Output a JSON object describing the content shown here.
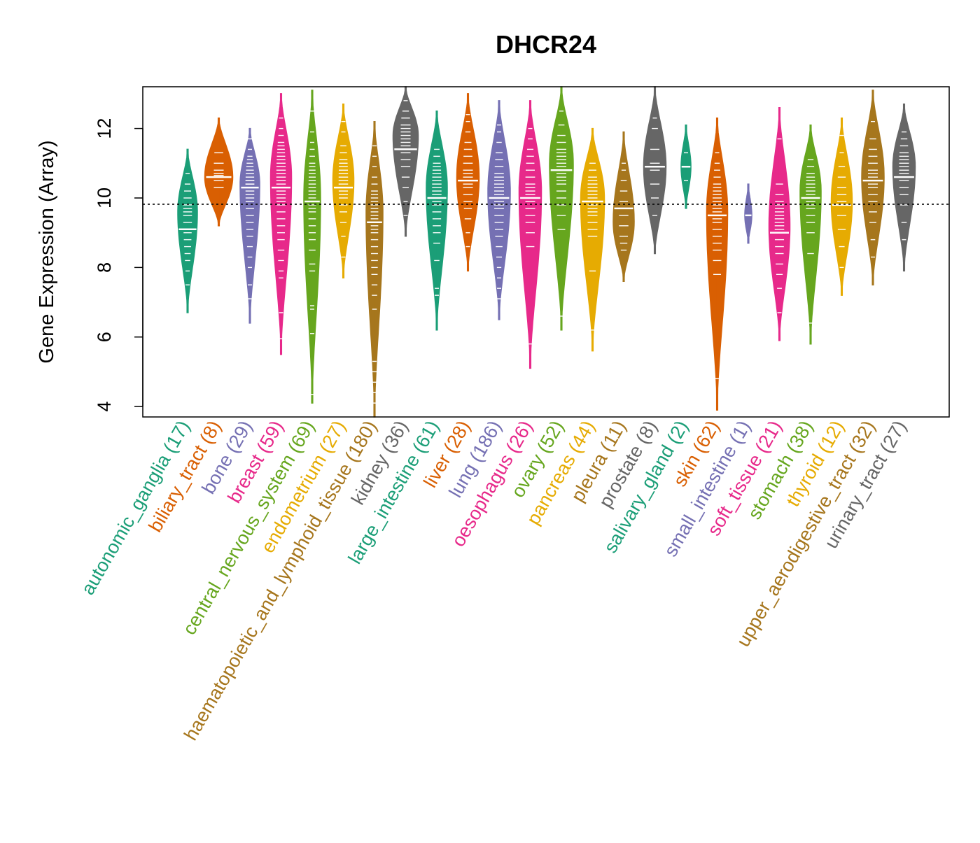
{
  "chart_data": {
    "type": "violin",
    "title": "DHCR24",
    "xlabel": "",
    "ylabel": "Gene Expression (Array)",
    "ylim": [
      3.7,
      13.2
    ],
    "yticks": [
      4,
      6,
      8,
      10,
      12
    ],
    "reference_line": 9.82,
    "grid": false,
    "legend": "none",
    "categories": [
      {
        "name": "autonomic_ganglia",
        "n": 17,
        "label": "autonomic_ganglia (17)",
        "color": "#1B9E77",
        "min": 6.7,
        "max": 11.4,
        "median": 9.1,
        "mode": 9.6,
        "width": 0.7,
        "points": [
          7.5,
          7.9,
          8.2,
          8.4,
          8.6,
          8.8,
          9.0,
          9.1,
          9.3,
          9.5,
          9.6,
          9.7,
          9.8,
          10.0,
          10.2,
          10.4,
          10.7
        ]
      },
      {
        "name": "biliary_tract",
        "n": 8,
        "label": "biliary_tract (8)",
        "color": "#D95F02",
        "min": 9.2,
        "max": 12.3,
        "median": 10.6,
        "mode": 10.6,
        "width": 1.0,
        "points": [
          10.3,
          10.5,
          10.6,
          10.65,
          10.7,
          10.8,
          11.0,
          11.3
        ]
      },
      {
        "name": "bone",
        "n": 29,
        "label": "bone (29)",
        "color": "#7570B3",
        "min": 6.4,
        "max": 12.0,
        "median": 10.3,
        "mode": 10.4,
        "width": 0.7,
        "points": [
          7.1,
          7.5,
          8.0,
          8.3,
          8.6,
          8.9,
          9.1,
          9.3,
          9.5,
          9.7,
          9.9,
          10.0,
          10.1,
          10.2,
          10.3,
          10.3,
          10.4,
          10.4,
          10.5,
          10.5,
          10.6,
          10.7,
          10.8,
          10.9,
          11.0,
          11.1,
          11.2,
          11.4,
          11.7
        ]
      },
      {
        "name": "breast",
        "n": 59,
        "label": "breast (59)",
        "color": "#E7298A",
        "min": 5.5,
        "max": 13.0,
        "median": 10.3,
        "mode": 10.6,
        "width": 0.75,
        "points": [
          5.95,
          6.7,
          7.7,
          7.9,
          8.2,
          8.5,
          8.8,
          9.0,
          9.2,
          9.4,
          9.6,
          9.8,
          9.9,
          10.0,
          10.1,
          10.2,
          10.3,
          10.4,
          10.5,
          10.6,
          10.7,
          10.8,
          10.9,
          11.0,
          11.1,
          11.2,
          11.3,
          11.4,
          11.5,
          11.6,
          11.8,
          12.0,
          12.3
        ]
      },
      {
        "name": "central_nervous_system",
        "n": 69,
        "label": "central_nervous_system (69)",
        "color": "#66A61E",
        "min": 4.1,
        "max": 13.1,
        "median": 9.9,
        "mode": 10.0,
        "width": 0.6,
        "points": [
          4.35,
          6.1,
          6.8,
          6.9,
          7.9,
          8.1,
          8.5,
          8.8,
          9.0,
          9.2,
          9.4,
          9.6,
          9.7,
          9.8,
          9.9,
          10.0,
          10.1,
          10.2,
          10.3,
          10.4,
          10.5,
          10.6,
          10.7,
          10.8,
          10.9,
          11.0,
          11.2,
          11.4,
          11.6,
          11.9,
          12.5
        ]
      },
      {
        "name": "endometrium",
        "n": 27,
        "label": "endometrium (27)",
        "color": "#E6AB02",
        "min": 7.7,
        "max": 12.7,
        "median": 10.3,
        "mode": 10.5,
        "width": 0.75,
        "points": [
          8.3,
          8.9,
          9.3,
          9.6,
          9.8,
          10.0,
          10.1,
          10.2,
          10.3,
          10.4,
          10.5,
          10.6,
          10.7,
          10.8,
          10.9,
          11.0,
          11.1,
          11.3,
          11.5,
          11.9,
          12.2
        ]
      },
      {
        "name": "haematopoietic_and_lymphoid_tissue",
        "n": 180,
        "label": "haematopoietic_and_lymphoid_tissue (180)",
        "color": "#A6761D",
        "min": 3.7,
        "max": 12.2,
        "median": 9.3,
        "mode": 9.6,
        "width": 0.6,
        "points": [
          4.1,
          4.4,
          4.7,
          5.0,
          5.3,
          6.8,
          7.2,
          7.5,
          7.8,
          8.0,
          8.2,
          8.4,
          8.6,
          8.8,
          9.0,
          9.1,
          9.2,
          9.3,
          9.4,
          9.5,
          9.6,
          9.7,
          9.8,
          9.9,
          10.0,
          10.1,
          10.2,
          10.4,
          10.6,
          10.9,
          11.2,
          11.5
        ]
      },
      {
        "name": "kidney",
        "n": 36,
        "label": "kidney (36)",
        "color": "#666666",
        "min": 8.9,
        "max": 13.2,
        "median": 11.4,
        "mode": 11.8,
        "width": 0.9,
        "points": [
          9.5,
          9.9,
          10.3,
          10.6,
          10.9,
          11.1,
          11.3,
          11.4,
          11.5,
          11.6,
          11.7,
          11.8,
          11.9,
          12.0,
          12.1,
          12.3,
          12.5,
          12.8
        ]
      },
      {
        "name": "large_intestine",
        "n": 61,
        "label": "large_intestine (61)",
        "color": "#1B9E77",
        "min": 6.2,
        "max": 12.5,
        "median": 10.0,
        "mode": 10.3,
        "width": 0.75,
        "points": [
          7.2,
          7.4,
          8.2,
          8.7,
          9.0,
          9.2,
          9.4,
          9.6,
          9.8,
          9.9,
          10.0,
          10.1,
          10.2,
          10.3,
          10.4,
          10.5,
          10.6,
          10.7,
          10.8,
          10.9,
          11.0,
          11.2,
          11.4
        ]
      },
      {
        "name": "liver",
        "n": 28,
        "label": "liver (28)",
        "color": "#D95F02",
        "min": 7.9,
        "max": 13.0,
        "median": 10.5,
        "mode": 10.6,
        "width": 0.8,
        "points": [
          8.6,
          9.0,
          9.4,
          9.7,
          9.9,
          10.1,
          10.3,
          10.4,
          10.5,
          10.6,
          10.7,
          10.8,
          11.0,
          11.2,
          11.4,
          11.6,
          11.9,
          12.2,
          12.4
        ]
      },
      {
        "name": "lung",
        "n": 186,
        "label": "lung (186)",
        "color": "#7570B3",
        "min": 6.5,
        "max": 12.8,
        "median": 10.0,
        "mode": 10.2,
        "width": 0.8,
        "points": [
          7.1,
          7.4,
          7.7,
          8.0,
          8.3,
          8.6,
          8.9,
          9.1,
          9.3,
          9.5,
          9.7,
          9.8,
          9.9,
          10.0,
          10.1,
          10.2,
          10.3,
          10.4,
          10.5,
          10.6,
          10.7,
          10.9,
          11.1,
          11.3,
          11.6,
          11.9,
          12.1
        ]
      },
      {
        "name": "oesophagus",
        "n": 26,
        "label": "oesophagus (26)",
        "color": "#E7298A",
        "min": 5.1,
        "max": 12.8,
        "median": 10.0,
        "mode": 10.2,
        "width": 0.8,
        "points": [
          5.8,
          8.6,
          9.0,
          9.3,
          9.5,
          9.7,
          9.9,
          10.0,
          10.1,
          10.2,
          10.3,
          10.4,
          10.6,
          10.8,
          11.0,
          11.2,
          11.4,
          11.7,
          12.0
        ]
      },
      {
        "name": "ovary",
        "n": 52,
        "label": "ovary (52)",
        "color": "#66A61E",
        "min": 6.2,
        "max": 13.2,
        "median": 10.8,
        "mode": 11.0,
        "width": 0.85,
        "points": [
          6.6,
          9.1,
          9.5,
          9.8,
          10.0,
          10.2,
          10.4,
          10.5,
          10.6,
          10.7,
          10.8,
          10.9,
          11.0,
          11.1,
          11.2,
          11.3,
          11.4,
          11.6,
          11.8,
          12.1,
          12.5
        ]
      },
      {
        "name": "pancreas",
        "n": 44,
        "label": "pancreas (44)",
        "color": "#E6AB02",
        "min": 5.6,
        "max": 12.0,
        "median": 9.9,
        "mode": 10.0,
        "width": 0.85,
        "points": [
          6.2,
          7.9,
          8.9,
          9.1,
          9.3,
          9.5,
          9.6,
          9.7,
          9.8,
          9.9,
          10.0,
          10.1,
          10.2,
          10.3,
          10.4,
          10.5,
          10.6,
          10.8,
          11.0
        ]
      },
      {
        "name": "pleura",
        "n": 11,
        "label": "pleura (11)",
        "color": "#A6761D",
        "min": 7.6,
        "max": 11.9,
        "median": 9.7,
        "mode": 9.3,
        "width": 0.75,
        "points": [
          8.5,
          8.7,
          8.9,
          9.2,
          9.5,
          9.7,
          9.9,
          10.2,
          10.5,
          10.8,
          11.0
        ]
      },
      {
        "name": "prostate",
        "n": 8,
        "label": "prostate (8)",
        "color": "#666666",
        "min": 8.4,
        "max": 13.2,
        "median": 10.9,
        "mode": 10.9,
        "width": 0.8,
        "points": [
          9.5,
          10.0,
          10.4,
          10.8,
          11.0,
          11.4,
          12.0,
          12.3
        ]
      },
      {
        "name": "salivary_gland",
        "n": 2,
        "label": "salivary_gland (2)",
        "color": "#1B9E77",
        "min": 9.7,
        "max": 12.1,
        "median": 10.9,
        "mode": 10.9,
        "width": 0.35,
        "points": [
          10.5,
          11.3
        ]
      },
      {
        "name": "skin",
        "n": 62,
        "label": "skin (62)",
        "color": "#D95F02",
        "min": 3.9,
        "max": 12.3,
        "median": 9.5,
        "mode": 9.6,
        "width": 0.75,
        "points": [
          4.8,
          7.8,
          8.2,
          8.5,
          8.7,
          8.9,
          9.1,
          9.3,
          9.4,
          9.5,
          9.6,
          9.7,
          9.8,
          9.9,
          10.0,
          10.1,
          10.2,
          10.3,
          10.4,
          10.6,
          10.8,
          11.0,
          11.3
        ]
      },
      {
        "name": "small_intestine",
        "n": 1,
        "label": "small_intestine (1)",
        "color": "#7570B3",
        "min": 8.7,
        "max": 10.4,
        "median": 9.5,
        "mode": 9.5,
        "width": 0.25,
        "points": [
          9.5
        ]
      },
      {
        "name": "soft_tissue",
        "n": 21,
        "label": "soft_tissue (21)",
        "color": "#E7298A",
        "min": 5.9,
        "max": 12.6,
        "median": 9.0,
        "mode": 9.2,
        "width": 0.75,
        "points": [
          6.7,
          7.4,
          7.8,
          8.1,
          8.4,
          8.6,
          8.8,
          9.0,
          9.1,
          9.2,
          9.3,
          9.4,
          9.5,
          9.6,
          9.7,
          9.8,
          9.9,
          10.1,
          10.4,
          11.7
        ]
      },
      {
        "name": "stomach",
        "n": 38,
        "label": "stomach (38)",
        "color": "#66A61E",
        "min": 5.8,
        "max": 12.1,
        "median": 10.0,
        "mode": 10.2,
        "width": 0.75,
        "points": [
          6.4,
          8.4,
          9.0,
          9.3,
          9.5,
          9.7,
          9.8,
          9.9,
          10.0,
          10.1,
          10.2,
          10.3,
          10.4,
          10.5,
          10.6,
          10.7,
          10.9,
          11.1
        ]
      },
      {
        "name": "thyroid",
        "n": 12,
        "label": "thyroid (12)",
        "color": "#E6AB02",
        "min": 7.2,
        "max": 12.3,
        "median": 9.8,
        "mode": 9.9,
        "width": 0.75,
        "points": [
          8.0,
          8.6,
          9.1,
          9.5,
          9.8,
          9.9,
          10.1,
          10.3,
          10.6,
          10.9,
          11.3,
          11.8
        ]
      },
      {
        "name": "upper_aerodigestive_tract",
        "n": 32,
        "label": "upper_aerodigestive_tract (32)",
        "color": "#A6761D",
        "min": 7.5,
        "max": 13.1,
        "median": 10.5,
        "mode": 10.6,
        "width": 0.8,
        "points": [
          8.3,
          8.8,
          9.3,
          9.6,
          9.9,
          10.1,
          10.3,
          10.4,
          10.5,
          10.6,
          10.7,
          10.8,
          11.0,
          11.2,
          11.4,
          11.7,
          12.2
        ]
      },
      {
        "name": "urinary_tract",
        "n": 27,
        "label": "urinary_tract (27)",
        "color": "#666666",
        "min": 7.9,
        "max": 12.7,
        "median": 10.6,
        "mode": 10.9,
        "width": 0.8,
        "points": [
          8.8,
          9.3,
          9.8,
          10.1,
          10.3,
          10.5,
          10.6,
          10.7,
          10.8,
          10.9,
          11.0,
          11.1,
          11.2,
          11.3,
          11.5,
          11.7,
          11.9
        ]
      }
    ]
  }
}
